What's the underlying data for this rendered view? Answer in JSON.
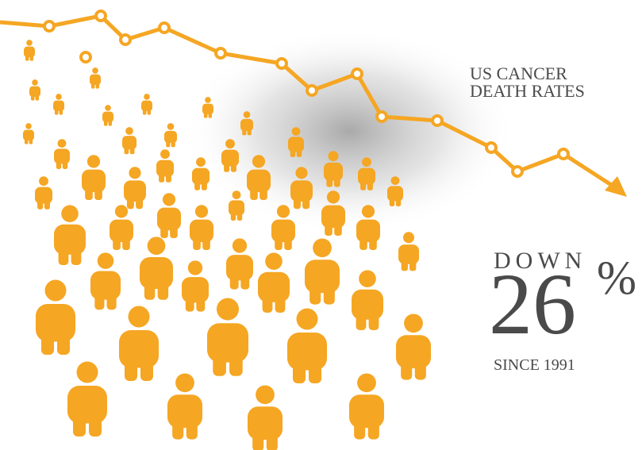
{
  "headline": {
    "line1": "US CANCER",
    "line2": "DEATH RATES"
  },
  "stat": {
    "prefix": "DOWN",
    "value": "26",
    "unit": "%",
    "since": "SINCE 1991"
  }
}
